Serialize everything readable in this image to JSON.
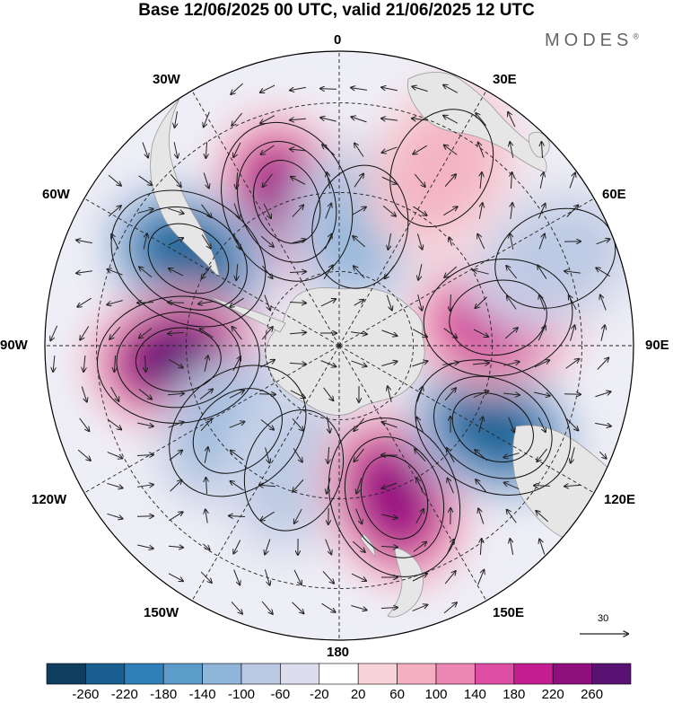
{
  "title": "Base 12/06/2025 00 UTC, valid 21/06/2025 12 UTC",
  "brand": {
    "name": "MODES",
    "mark": "®"
  },
  "longitude_labels": {
    "top": "0",
    "bottom": "180",
    "left": "90W",
    "right": "90E",
    "upper_left_30": "30W",
    "upper_right_30": "30E",
    "upper_left_60": "60W",
    "upper_right_60": "60E",
    "lower_left_120": "120W",
    "lower_right_120": "120E",
    "lower_left_150": "150W",
    "lower_right_150": "150E"
  },
  "reference_vector": {
    "label": "30"
  },
  "colorbar": {
    "labels": [
      "-260",
      "-220",
      "-180",
      "-140",
      "-100",
      "-60",
      "-20",
      "20",
      "60",
      "100",
      "140",
      "180",
      "220",
      "260"
    ],
    "colors": [
      "#0f3d5e",
      "#1a5f92",
      "#2f7fb8",
      "#5b9ccb",
      "#8fb5d9",
      "#b9c8e3",
      "#dcdeed",
      "#ffffff",
      "#f8d3d8",
      "#f4b0c1",
      "#ec87b3",
      "#dd4ea4",
      "#c21d91",
      "#8f0f7f",
      "#5a1272"
    ]
  },
  "map": {
    "projection": "south polar stereographic",
    "anomaly_centers": [
      {
        "lon": -20,
        "lat": -50,
        "value": 250
      },
      {
        "lon": -60,
        "lat": -45,
        "value": -230
      },
      {
        "lon": -95,
        "lat": -48,
        "value": 260
      },
      {
        "lon": -130,
        "lat": -55,
        "value": -120
      },
      {
        "lon": -160,
        "lat": -55,
        "value": -80
      },
      {
        "lon": 160,
        "lat": -48,
        "value": 240
      },
      {
        "lon": 118,
        "lat": -45,
        "value": -220
      },
      {
        "lon": 80,
        "lat": -48,
        "value": 190
      },
      {
        "lon": 10,
        "lat": -58,
        "value": -110
      },
      {
        "lon": 68,
        "lat": -32,
        "value": -90
      },
      {
        "lon": 30,
        "lat": -38,
        "value": 80
      }
    ]
  }
}
